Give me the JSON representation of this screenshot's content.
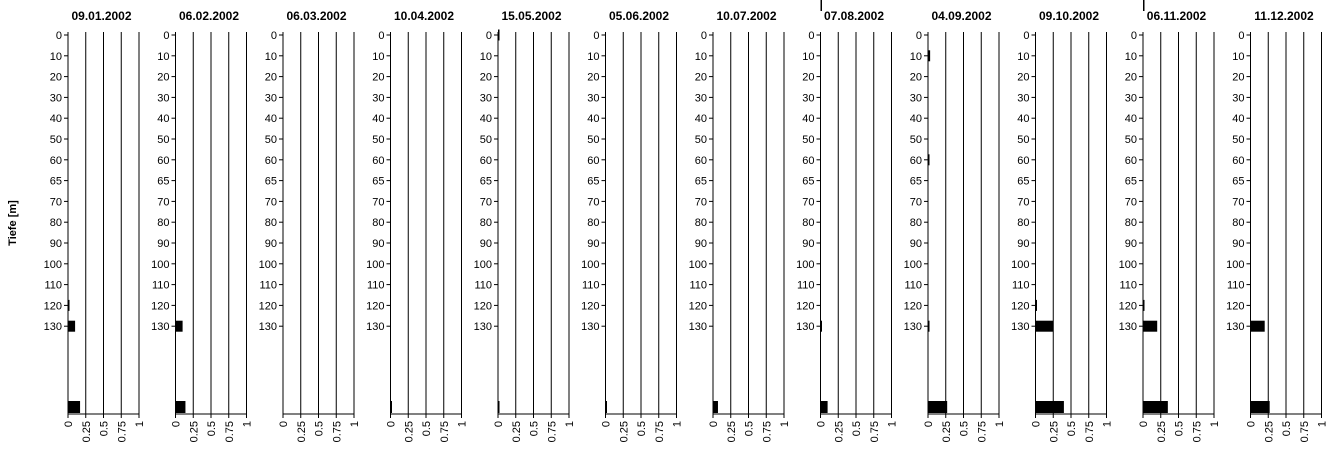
{
  "chart_data": {
    "type": "bar",
    "orientation": "horizontal",
    "ylabel": "Tiefe [m]",
    "depth_labels": [
      "0",
      "10",
      "20",
      "30",
      "40",
      "50",
      "60",
      "65",
      "70",
      "80",
      "90",
      "100",
      "110",
      "120",
      "130"
    ],
    "xticks": [
      "0",
      "0.25",
      "0.5",
      "0.75",
      "1"
    ],
    "xlim": [
      0,
      1
    ],
    "grid": "vertical",
    "bar_color": "#000000",
    "panels": [
      {
        "title": "09.01.2002",
        "bars": [
          {
            "depth": "120",
            "value": 0.01
          },
          {
            "depth": "130",
            "value": 0.1
          },
          {
            "depth": "bottom",
            "value": 0.17
          }
        ]
      },
      {
        "title": "06.02.2002",
        "bars": [
          {
            "depth": "130",
            "value": 0.1
          },
          {
            "depth": "bottom",
            "value": 0.14
          }
        ]
      },
      {
        "title": "06.03.2002",
        "bars": []
      },
      {
        "title": "10.04.2002",
        "bars": [
          {
            "depth": "bottom",
            "value": 0.02
          }
        ]
      },
      {
        "title": "15.05.2002",
        "bars": [
          {
            "depth": "0",
            "value": 0.015
          },
          {
            "depth": "bottom",
            "value": 0.015
          }
        ]
      },
      {
        "title": "05.06.2002",
        "bars": [
          {
            "depth": "bottom",
            "value": 0.015
          }
        ]
      },
      {
        "title": "10.07.2002",
        "bars": [
          {
            "depth": "bottom",
            "value": 0.07
          }
        ]
      },
      {
        "title": "07.08.2002",
        "bars": [
          {
            "depth": "15",
            "value": 0.02
          },
          {
            "depth": "130",
            "value": 0.02
          },
          {
            "depth": "bottom",
            "value": 0.1
          }
        ]
      },
      {
        "title": "04.09.2002",
        "bars": [
          {
            "depth": "10",
            "value": 0.03
          },
          {
            "depth": "60",
            "value": 0.01
          },
          {
            "depth": "130",
            "value": 0.01
          },
          {
            "depth": "bottom",
            "value": 0.27
          }
        ]
      },
      {
        "title": "09.10.2002",
        "bars": [
          {
            "depth": "120",
            "value": 0.01
          },
          {
            "depth": "130",
            "value": 0.25
          },
          {
            "depth": "bottom",
            "value": 0.4
          }
        ]
      },
      {
        "title": "06.11.2002",
        "bars": [
          {
            "depth": "15",
            "value": 0.01
          },
          {
            "depth": "120",
            "value": 0.02
          },
          {
            "depth": "130",
            "value": 0.2
          },
          {
            "depth": "bottom",
            "value": 0.35
          }
        ]
      },
      {
        "title": "11.12.2002",
        "bars": [
          {
            "depth": "130",
            "value": 0.2
          },
          {
            "depth": "bottom",
            "value": 0.27
          }
        ]
      }
    ]
  }
}
